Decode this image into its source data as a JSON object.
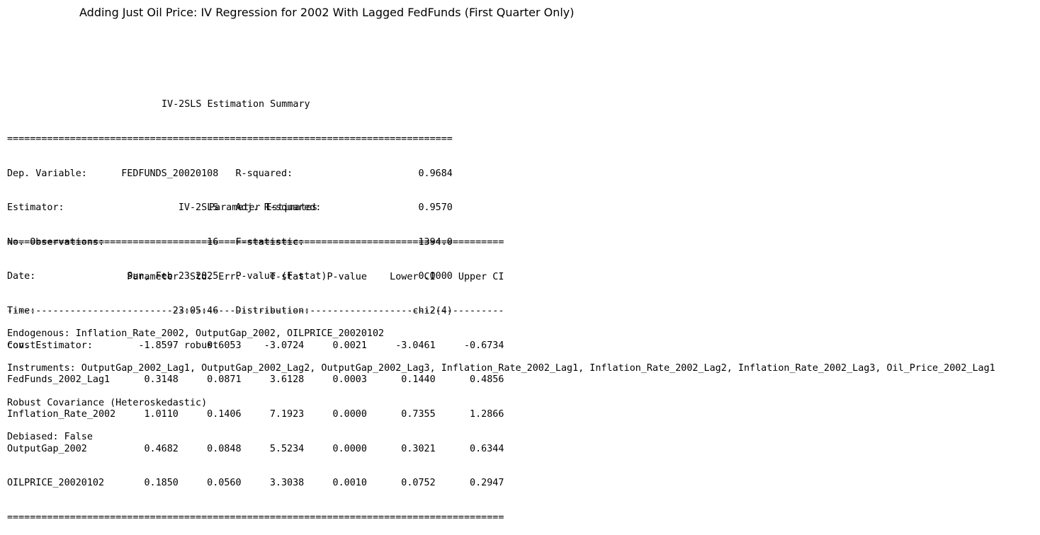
{
  "title": "Adding Just Oil Price: IV Regression for 2002 With Lagged FedFunds (First Quarter Only)",
  "summary": {
    "heading": "IV-2SLS Estimation Summary",
    "rule_eq": "==============================================================================",
    "rows": [
      "Dep. Variable:      FEDFUNDS_20020108   R-squared:                      0.9684",
      "Estimator:                    IV-2SLS   Adj. R-squared:                 0.9570",
      "No. Observations:                  16   F-statistic:                    1394.0",
      "Date:                Sun, Feb 23 2025   P-value (F-stat)                0.0000",
      "Time:                        23:05:46   Distribution:                  chi2(4)",
      "Cov. Estimator:                robust"
    ]
  },
  "params": {
    "heading": "Parameter Estimates",
    "rule_eq": "=======================================================================================",
    "rule_dash": "---------------------------------------------------------------------------------------",
    "header": "                     Parameter  Std. Err.     T-stat    P-value    Lower CI    Upper CI",
    "rows": [
      "const                  -1.8597     0.6053    -3.0724     0.0021     -3.0461     -0.6734",
      "FedFunds_2002_Lag1      0.3148     0.0871     3.6128     0.0003      0.1440      0.4856",
      "Inflation_Rate_2002     1.0110     0.1406     7.1923     0.0000      0.7355      1.2866",
      "OutputGap_2002          0.4682     0.0848     5.5234     0.0000      0.3021      0.6344",
      "OILPRICE_20020102       0.1850     0.0560     3.3038     0.0010      0.0752      0.2947"
    ]
  },
  "footer": {
    "endogenous": "Endogenous: Inflation_Rate_2002, OutputGap_2002, OILPRICE_20020102",
    "instruments": "Instruments: OutputGap_2002_Lag1, OutputGap_2002_Lag2, OutputGap_2002_Lag3, Inflation_Rate_2002_Lag1, Inflation_Rate_2002_Lag2, Inflation_Rate_2002_Lag3, Oil_Price_2002_Lag1",
    "covariance": "Robust Covariance (Heteroskedastic)",
    "debiased": "Debiased: False"
  }
}
